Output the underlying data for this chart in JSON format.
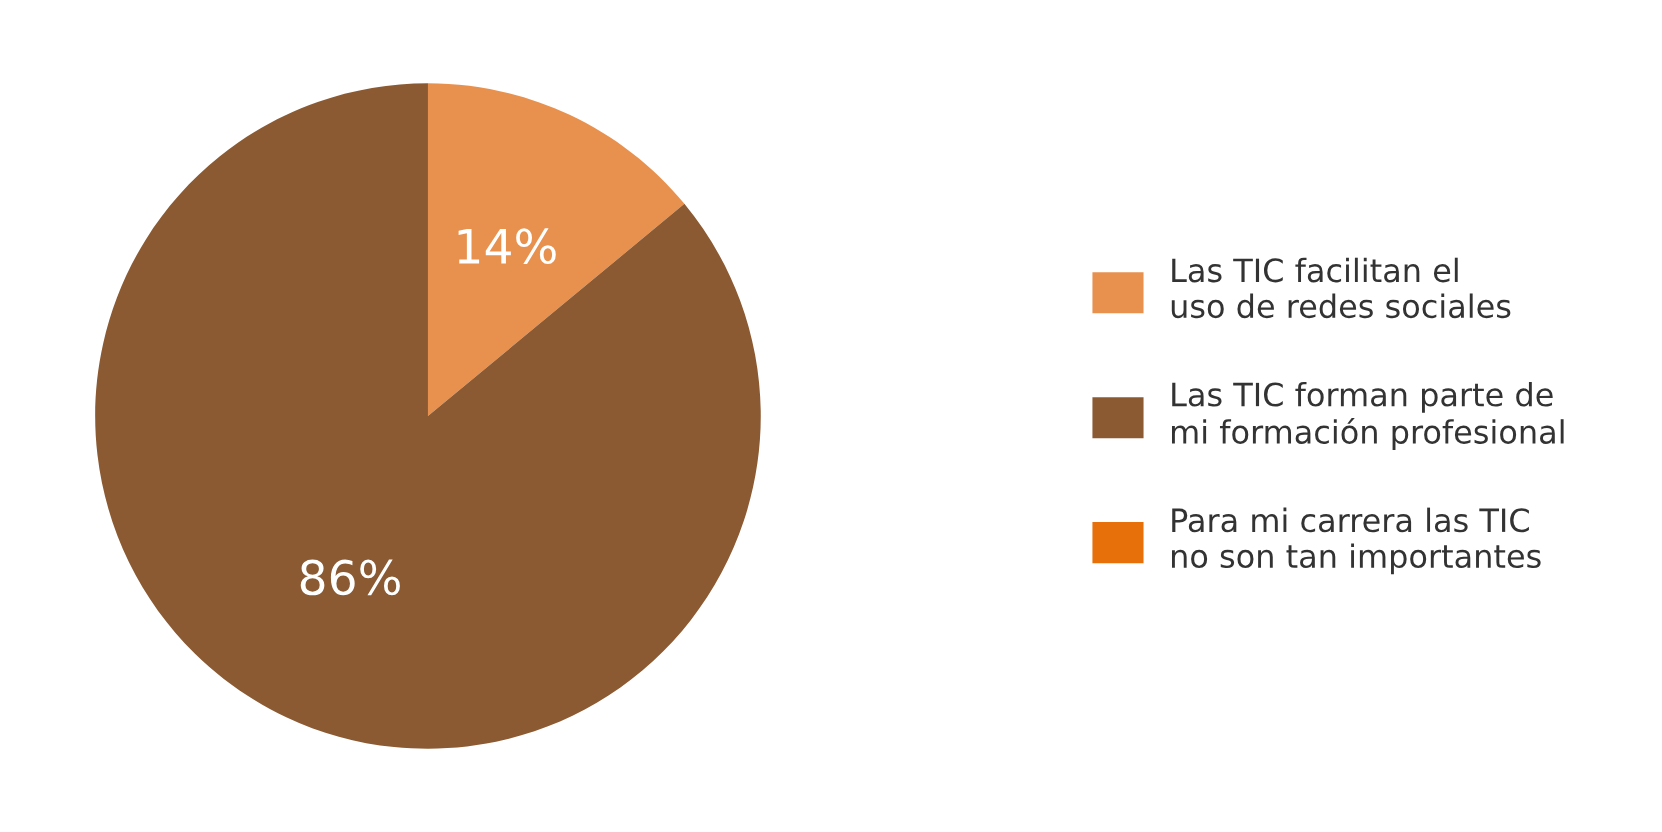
{
  "chart_data": {
    "type": "pie",
    "categories": [
      "Las TIC facilitan el\nuso de redes sociales",
      "Las TIC forman parte de\nmi formación profesional",
      "Para mi carrera las TIC\nno son tan importantes"
    ],
    "values": [
      14,
      86,
      0
    ],
    "colors": [
      "#e8914e",
      "#8b5a32",
      "#e8700a"
    ],
    "value_labels": [
      "14%",
      "86%",
      null
    ],
    "legend": "right"
  }
}
